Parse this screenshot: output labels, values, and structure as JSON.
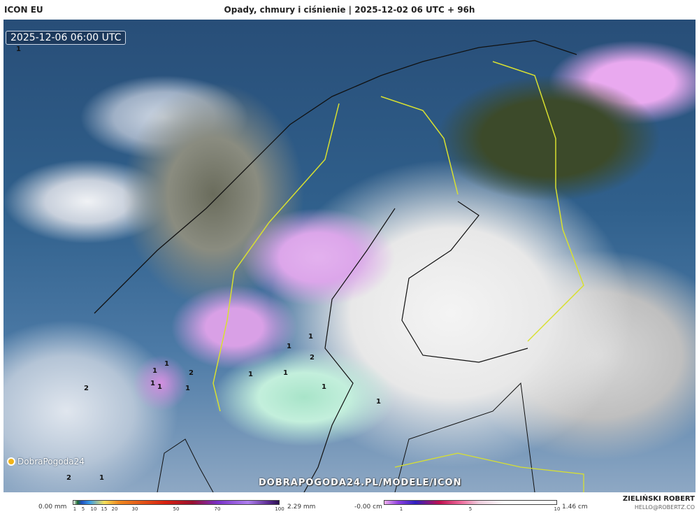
{
  "header": {
    "model": "ICON EU",
    "title": "Opady, chmury i ciśnienie | 2025-12-02 06 UTC + 96h"
  },
  "map": {
    "timestamp": "2025-12-06 06:00 UTC",
    "watermark": "DOBRAPOGODA24.PL/MODELE/ICON",
    "logo": "DobraPogoda24",
    "pressure_labels": [
      "1",
      "1",
      "2",
      "1",
      "1",
      "1",
      "2",
      "1",
      "1",
      "1",
      "1",
      "1",
      "1",
      "2",
      "2",
      "1",
      "1"
    ]
  },
  "legend": {
    "precip": {
      "min": "0.00 mm",
      "max": "2.29 mm",
      "ticks": [
        "1",
        "5",
        "10",
        "15",
        "20",
        "30",
        "50",
        "70",
        "100"
      ]
    },
    "snow": {
      "min": "-0.00 cm",
      "max": "1.46 cm",
      "ticks": [
        "1",
        "5",
        "10"
      ]
    }
  },
  "author": {
    "name": "ZIELIŃSKI ROBERT",
    "email": "HELLO@ROBERTZ.CO"
  }
}
